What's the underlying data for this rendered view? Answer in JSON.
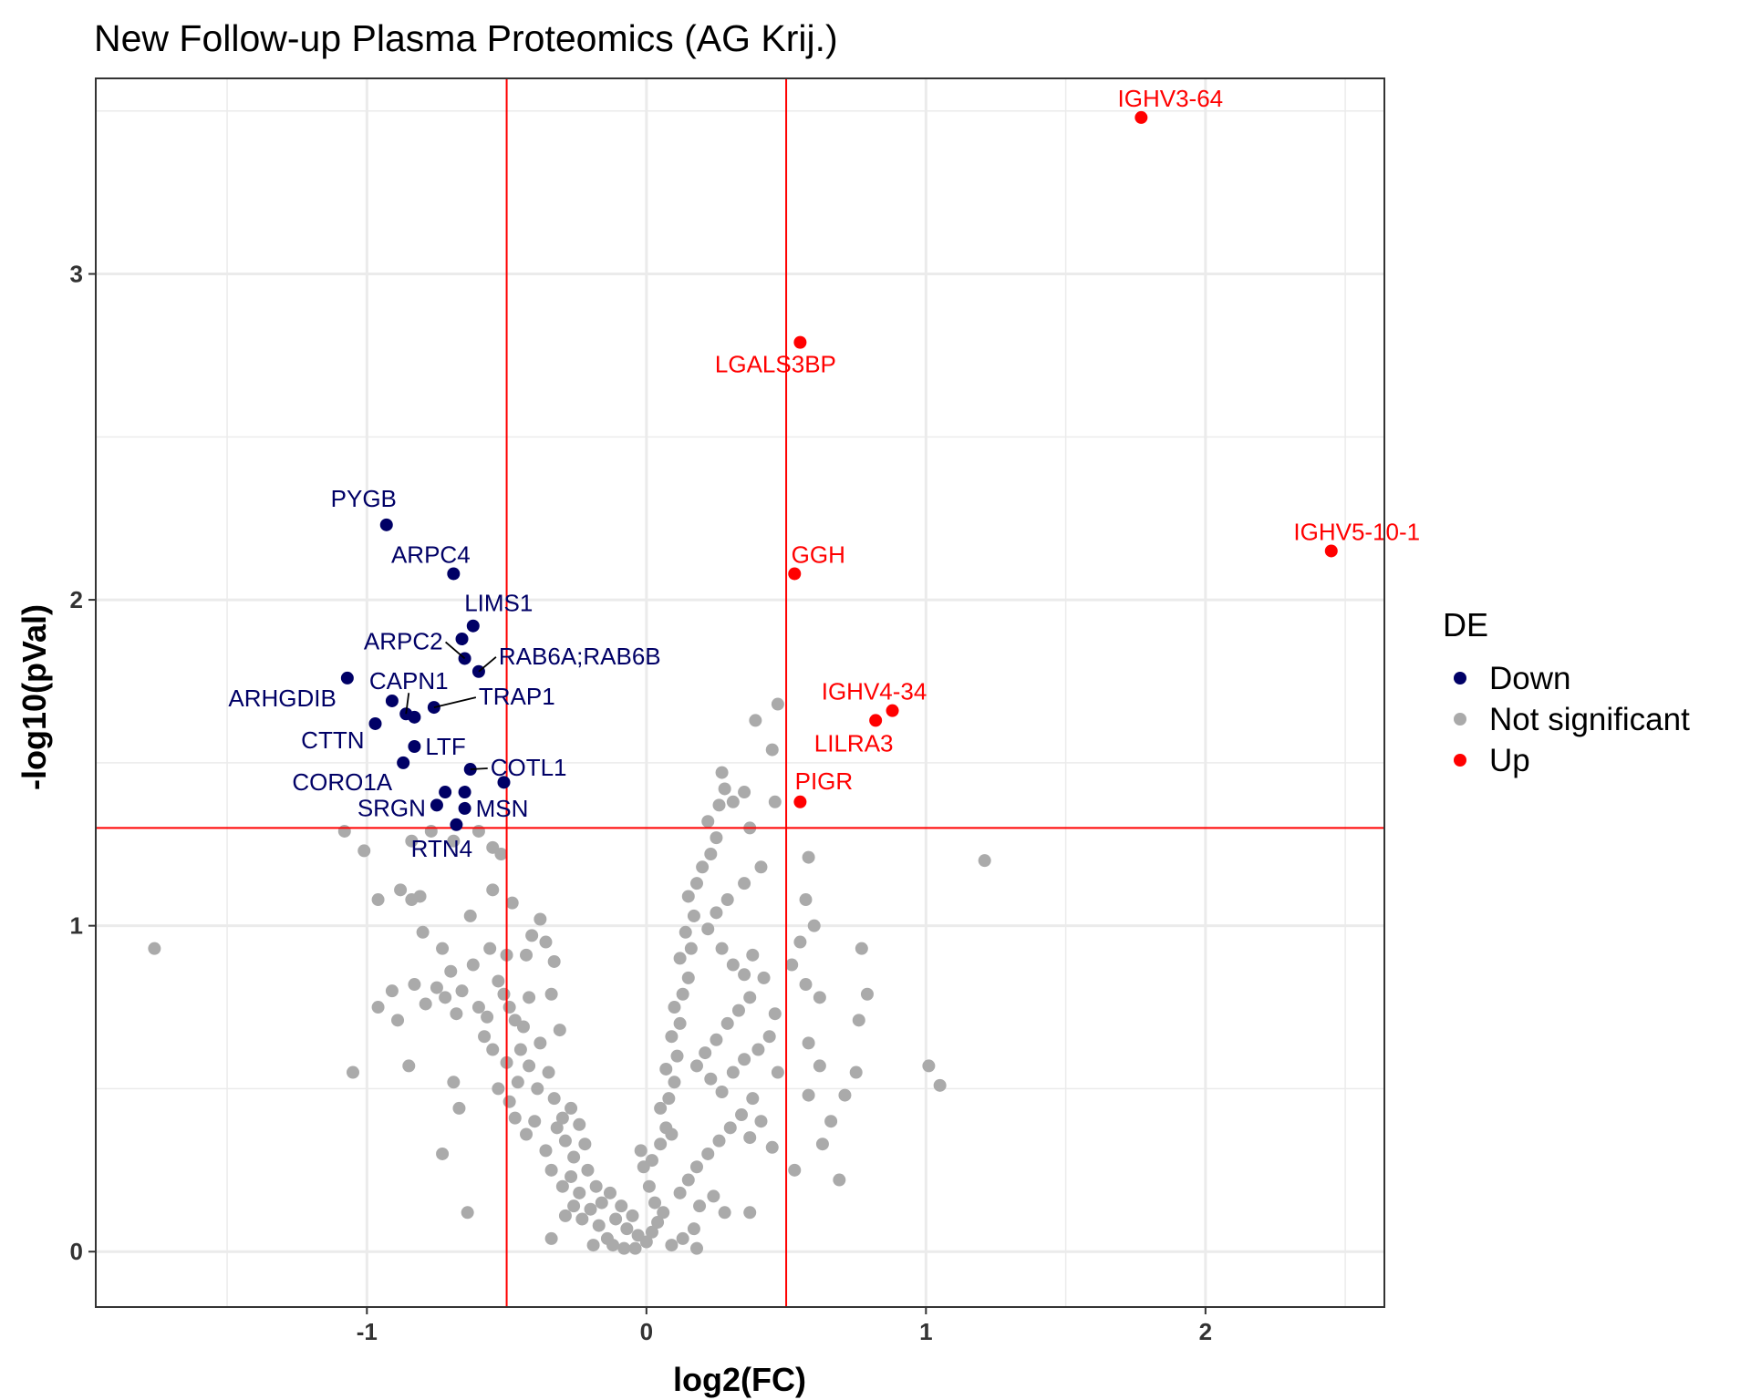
{
  "chart_data": {
    "type": "scatter",
    "title": "New Follow-up Plasma Proteomics (AG Krij.)",
    "xlabel": "log2(FC)",
    "ylabel": "-log10(pVal)",
    "xlim": [
      -1.97,
      2.64
    ],
    "ylim": [
      -0.17,
      3.6
    ],
    "x_ticks": [
      -1,
      0,
      1,
      2
    ],
    "y_ticks": [
      0,
      1,
      2,
      3
    ],
    "x_tick_labels": [
      "-1",
      "0",
      "1",
      "2"
    ],
    "y_tick_labels": [
      "0",
      "1",
      "2",
      "3"
    ],
    "grid": true,
    "thresholds": {
      "log2fc": [
        -0.5,
        0.5
      ],
      "neg_log10_p": 1.3,
      "color": "#ff0000"
    },
    "legend": {
      "title": "DE",
      "position": "right",
      "items": [
        {
          "label": "Down",
          "color": "#000066"
        },
        {
          "label": "Not significant",
          "color": "#aaaaaa"
        },
        {
          "label": "Up",
          "color": "#ff0000"
        }
      ]
    },
    "series": [
      {
        "name": "Down",
        "color": "#000066",
        "points": [
          {
            "x": -0.93,
            "y": 2.23,
            "label": "PYGB"
          },
          {
            "x": -0.69,
            "y": 2.08,
            "label": "ARPC4"
          },
          {
            "x": -0.62,
            "y": 1.92,
            "label": "LIMS1"
          },
          {
            "x": -0.66,
            "y": 1.88
          },
          {
            "x": -0.65,
            "y": 1.82,
            "label": "ARPC2"
          },
          {
            "x": -0.6,
            "y": 1.78,
            "label": "RAB6A;RAB6B"
          },
          {
            "x": -1.07,
            "y": 1.76,
            "label": "ARHGDIB"
          },
          {
            "x": -0.91,
            "y": 1.69
          },
          {
            "x": -0.86,
            "y": 1.65,
            "label": "CAPN1"
          },
          {
            "x": -0.83,
            "y": 1.64
          },
          {
            "x": -0.76,
            "y": 1.67,
            "label": "TRAP1"
          },
          {
            "x": -0.97,
            "y": 1.62,
            "label": "CTTN"
          },
          {
            "x": -0.83,
            "y": 1.55,
            "label": "LTF"
          },
          {
            "x": -0.87,
            "y": 1.5,
            "label": "CORO1A"
          },
          {
            "x": -0.63,
            "y": 1.48,
            "label": "COTL1"
          },
          {
            "x": -0.51,
            "y": 1.44
          },
          {
            "x": -0.72,
            "y": 1.41
          },
          {
            "x": -0.65,
            "y": 1.41
          },
          {
            "x": -0.75,
            "y": 1.37,
            "label": "SRGN"
          },
          {
            "x": -0.65,
            "y": 1.36,
            "label": "MSN"
          },
          {
            "x": -0.68,
            "y": 1.31,
            "label": "RTN4"
          }
        ]
      },
      {
        "name": "Up",
        "color": "#ff0000",
        "points": [
          {
            "x": 1.77,
            "y": 3.48,
            "label": "IGHV3-64"
          },
          {
            "x": 0.55,
            "y": 2.79,
            "label": "LGALS3BP"
          },
          {
            "x": 2.45,
            "y": 2.15,
            "label": "IGHV5-10-1"
          },
          {
            "x": 0.53,
            "y": 2.08,
            "label": "GGH"
          },
          {
            "x": 0.88,
            "y": 1.66,
            "label": "IGHV4-34"
          },
          {
            "x": 0.82,
            "y": 1.63,
            "label": "LILRA3"
          },
          {
            "x": 0.55,
            "y": 1.38,
            "label": "PIGR"
          }
        ]
      },
      {
        "name": "Not significant",
        "color": "#aaaaaa",
        "points": [
          {
            "x": -1.76,
            "y": 0.93
          },
          {
            "x": -1.08,
            "y": 1.29
          },
          {
            "x": -1.01,
            "y": 1.23
          },
          {
            "x": -1.05,
            "y": 0.55
          },
          {
            "x": -0.96,
            "y": 1.08
          },
          {
            "x": -0.88,
            "y": 1.11
          },
          {
            "x": -0.84,
            "y": 1.08
          },
          {
            "x": -0.81,
            "y": 1.09
          },
          {
            "x": -0.8,
            "y": 0.98
          },
          {
            "x": -0.73,
            "y": 0.93
          },
          {
            "x": -0.96,
            "y": 0.75
          },
          {
            "x": -0.91,
            "y": 0.8
          },
          {
            "x": -0.89,
            "y": 0.71
          },
          {
            "x": -0.83,
            "y": 0.82
          },
          {
            "x": -0.79,
            "y": 0.76
          },
          {
            "x": -0.75,
            "y": 0.81
          },
          {
            "x": -0.72,
            "y": 0.78
          },
          {
            "x": -0.7,
            "y": 0.86
          },
          {
            "x": -0.68,
            "y": 0.73
          },
          {
            "x": -0.85,
            "y": 0.57
          },
          {
            "x": -0.69,
            "y": 0.52
          },
          {
            "x": -0.67,
            "y": 0.44
          },
          {
            "x": -0.73,
            "y": 0.3
          },
          {
            "x": -0.64,
            "y": 0.12
          },
          {
            "x": -0.77,
            "y": 1.29
          },
          {
            "x": -0.84,
            "y": 1.26
          },
          {
            "x": -0.69,
            "y": 1.26
          },
          {
            "x": -0.6,
            "y": 1.29
          },
          {
            "x": -0.55,
            "y": 1.24
          },
          {
            "x": -0.52,
            "y": 1.22
          },
          {
            "x": -0.55,
            "y": 1.11
          },
          {
            "x": -0.48,
            "y": 1.07
          },
          {
            "x": -0.63,
            "y": 1.03
          },
          {
            "x": -0.56,
            "y": 0.93
          },
          {
            "x": -0.5,
            "y": 0.91
          },
          {
            "x": -0.62,
            "y": 0.88
          },
          {
            "x": -0.66,
            "y": 0.8
          },
          {
            "x": -0.6,
            "y": 0.75
          },
          {
            "x": -0.57,
            "y": 0.72
          },
          {
            "x": -0.53,
            "y": 0.83
          },
          {
            "x": -0.51,
            "y": 0.79
          },
          {
            "x": -0.49,
            "y": 0.75
          },
          {
            "x": -0.47,
            "y": 0.71
          },
          {
            "x": -0.44,
            "y": 0.69
          },
          {
            "x": -0.42,
            "y": 0.78
          },
          {
            "x": -0.43,
            "y": 0.91
          },
          {
            "x": -0.41,
            "y": 0.97
          },
          {
            "x": -0.38,
            "y": 1.02
          },
          {
            "x": -0.36,
            "y": 0.95
          },
          {
            "x": -0.33,
            "y": 0.89
          },
          {
            "x": -0.34,
            "y": 0.79
          },
          {
            "x": -0.31,
            "y": 0.68
          },
          {
            "x": -0.38,
            "y": 0.64
          },
          {
            "x": -0.45,
            "y": 0.62
          },
          {
            "x": -0.5,
            "y": 0.58
          },
          {
            "x": -0.55,
            "y": 0.62
          },
          {
            "x": -0.58,
            "y": 0.66
          },
          {
            "x": -0.53,
            "y": 0.5
          },
          {
            "x": -0.49,
            "y": 0.46
          },
          {
            "x": -0.46,
            "y": 0.52
          },
          {
            "x": -0.42,
            "y": 0.57
          },
          {
            "x": -0.39,
            "y": 0.5
          },
          {
            "x": -0.35,
            "y": 0.55
          },
          {
            "x": -0.33,
            "y": 0.47
          },
          {
            "x": -0.3,
            "y": 0.41
          },
          {
            "x": -0.27,
            "y": 0.44
          },
          {
            "x": -0.24,
            "y": 0.39
          },
          {
            "x": -0.22,
            "y": 0.33
          },
          {
            "x": -0.26,
            "y": 0.29
          },
          {
            "x": -0.29,
            "y": 0.34
          },
          {
            "x": -0.32,
            "y": 0.38
          },
          {
            "x": -0.36,
            "y": 0.31
          },
          {
            "x": -0.4,
            "y": 0.4
          },
          {
            "x": -0.43,
            "y": 0.36
          },
          {
            "x": -0.47,
            "y": 0.41
          },
          {
            "x": -0.34,
            "y": 0.25
          },
          {
            "x": -0.3,
            "y": 0.2
          },
          {
            "x": -0.27,
            "y": 0.23
          },
          {
            "x": -0.24,
            "y": 0.18
          },
          {
            "x": -0.21,
            "y": 0.25
          },
          {
            "x": -0.18,
            "y": 0.2
          },
          {
            "x": -0.16,
            "y": 0.15
          },
          {
            "x": -0.13,
            "y": 0.18
          },
          {
            "x": -0.11,
            "y": 0.1
          },
          {
            "x": -0.09,
            "y": 0.14
          },
          {
            "x": -0.07,
            "y": 0.07
          },
          {
            "x": -0.05,
            "y": 0.11
          },
          {
            "x": -0.03,
            "y": 0.05
          },
          {
            "x": -0.14,
            "y": 0.04
          },
          {
            "x": -0.17,
            "y": 0.08
          },
          {
            "x": -0.2,
            "y": 0.13
          },
          {
            "x": -0.23,
            "y": 0.1
          },
          {
            "x": -0.26,
            "y": 0.14
          },
          {
            "x": -0.29,
            "y": 0.11
          },
          {
            "x": -0.34,
            "y": 0.04
          },
          {
            "x": -0.19,
            "y": 0.02
          },
          {
            "x": -0.12,
            "y": 0.02
          },
          {
            "x": -0.08,
            "y": 0.01
          },
          {
            "x": -0.04,
            "y": 0.01
          },
          {
            "x": 0.0,
            "y": 0.03
          },
          {
            "x": 0.02,
            "y": 0.06
          },
          {
            "x": 0.04,
            "y": 0.09
          },
          {
            "x": 0.06,
            "y": 0.12
          },
          {
            "x": 0.03,
            "y": 0.15
          },
          {
            "x": 0.01,
            "y": 0.2
          },
          {
            "x": -0.01,
            "y": 0.26
          },
          {
            "x": -0.02,
            "y": 0.31
          },
          {
            "x": 0.02,
            "y": 0.28
          },
          {
            "x": 0.05,
            "y": 0.33
          },
          {
            "x": 0.07,
            "y": 0.38
          },
          {
            "x": 0.09,
            "y": 0.36
          },
          {
            "x": 0.05,
            "y": 0.44
          },
          {
            "x": 0.08,
            "y": 0.47
          },
          {
            "x": 0.1,
            "y": 0.52
          },
          {
            "x": 0.07,
            "y": 0.56
          },
          {
            "x": 0.11,
            "y": 0.6
          },
          {
            "x": 0.09,
            "y": 0.66
          },
          {
            "x": 0.12,
            "y": 0.7
          },
          {
            "x": 0.1,
            "y": 0.75
          },
          {
            "x": 0.13,
            "y": 0.79
          },
          {
            "x": 0.15,
            "y": 0.84
          },
          {
            "x": 0.12,
            "y": 0.9
          },
          {
            "x": 0.16,
            "y": 0.93
          },
          {
            "x": 0.14,
            "y": 0.98
          },
          {
            "x": 0.17,
            "y": 1.03
          },
          {
            "x": 0.15,
            "y": 1.09
          },
          {
            "x": 0.18,
            "y": 1.13
          },
          {
            "x": 0.2,
            "y": 1.18
          },
          {
            "x": 0.23,
            "y": 1.22
          },
          {
            "x": 0.25,
            "y": 1.27
          },
          {
            "x": 0.22,
            "y": 1.32
          },
          {
            "x": 0.26,
            "y": 1.37
          },
          {
            "x": 0.28,
            "y": 1.42
          },
          {
            "x": 0.27,
            "y": 1.47
          },
          {
            "x": 0.31,
            "y": 1.38
          },
          {
            "x": 0.35,
            "y": 1.41
          },
          {
            "x": 0.46,
            "y": 1.38
          },
          {
            "x": 0.45,
            "y": 1.54
          },
          {
            "x": 0.39,
            "y": 1.63
          },
          {
            "x": 0.47,
            "y": 1.68
          },
          {
            "x": 0.37,
            "y": 1.3
          },
          {
            "x": 0.41,
            "y": 1.18
          },
          {
            "x": 0.35,
            "y": 1.13
          },
          {
            "x": 0.29,
            "y": 1.08
          },
          {
            "x": 0.25,
            "y": 1.04
          },
          {
            "x": 0.22,
            "y": 0.99
          },
          {
            "x": 0.27,
            "y": 0.93
          },
          {
            "x": 0.31,
            "y": 0.88
          },
          {
            "x": 0.35,
            "y": 0.85
          },
          {
            "x": 0.38,
            "y": 0.91
          },
          {
            "x": 0.42,
            "y": 0.84
          },
          {
            "x": 0.37,
            "y": 0.78
          },
          {
            "x": 0.33,
            "y": 0.74
          },
          {
            "x": 0.29,
            "y": 0.7
          },
          {
            "x": 0.25,
            "y": 0.65
          },
          {
            "x": 0.21,
            "y": 0.61
          },
          {
            "x": 0.18,
            "y": 0.57
          },
          {
            "x": 0.23,
            "y": 0.53
          },
          {
            "x": 0.27,
            "y": 0.49
          },
          {
            "x": 0.31,
            "y": 0.55
          },
          {
            "x": 0.35,
            "y": 0.59
          },
          {
            "x": 0.4,
            "y": 0.62
          },
          {
            "x": 0.44,
            "y": 0.66
          },
          {
            "x": 0.46,
            "y": 0.73
          },
          {
            "x": 0.47,
            "y": 0.55
          },
          {
            "x": 0.38,
            "y": 0.47
          },
          {
            "x": 0.34,
            "y": 0.42
          },
          {
            "x": 0.3,
            "y": 0.38
          },
          {
            "x": 0.26,
            "y": 0.34
          },
          {
            "x": 0.22,
            "y": 0.3
          },
          {
            "x": 0.18,
            "y": 0.26
          },
          {
            "x": 0.15,
            "y": 0.22
          },
          {
            "x": 0.12,
            "y": 0.18
          },
          {
            "x": 0.19,
            "y": 0.14
          },
          {
            "x": 0.24,
            "y": 0.17
          },
          {
            "x": 0.28,
            "y": 0.12
          },
          {
            "x": 0.17,
            "y": 0.07
          },
          {
            "x": 0.13,
            "y": 0.04
          },
          {
            "x": 0.09,
            "y": 0.02
          },
          {
            "x": 0.18,
            "y": 0.01
          },
          {
            "x": 0.41,
            "y": 0.4
          },
          {
            "x": 0.37,
            "y": 0.35
          },
          {
            "x": 0.45,
            "y": 0.32
          },
          {
            "x": 0.53,
            "y": 0.25
          },
          {
            "x": 0.37,
            "y": 0.12
          },
          {
            "x": 0.58,
            "y": 0.64
          },
          {
            "x": 0.62,
            "y": 0.78
          },
          {
            "x": 0.57,
            "y": 0.82
          },
          {
            "x": 0.52,
            "y": 0.88
          },
          {
            "x": 0.55,
            "y": 0.95
          },
          {
            "x": 0.6,
            "y": 1.0
          },
          {
            "x": 0.57,
            "y": 1.08
          },
          {
            "x": 0.58,
            "y": 1.21
          },
          {
            "x": 0.62,
            "y": 0.57
          },
          {
            "x": 0.58,
            "y": 0.48
          },
          {
            "x": 0.66,
            "y": 0.4
          },
          {
            "x": 0.63,
            "y": 0.33
          },
          {
            "x": 0.69,
            "y": 0.22
          },
          {
            "x": 0.71,
            "y": 0.48
          },
          {
            "x": 0.76,
            "y": 0.71
          },
          {
            "x": 0.77,
            "y": 0.93
          },
          {
            "x": 0.79,
            "y": 0.79
          },
          {
            "x": 0.75,
            "y": 0.55
          },
          {
            "x": 1.01,
            "y": 0.57
          },
          {
            "x": 1.05,
            "y": 0.51
          },
          {
            "x": 1.21,
            "y": 1.2
          }
        ]
      }
    ]
  }
}
